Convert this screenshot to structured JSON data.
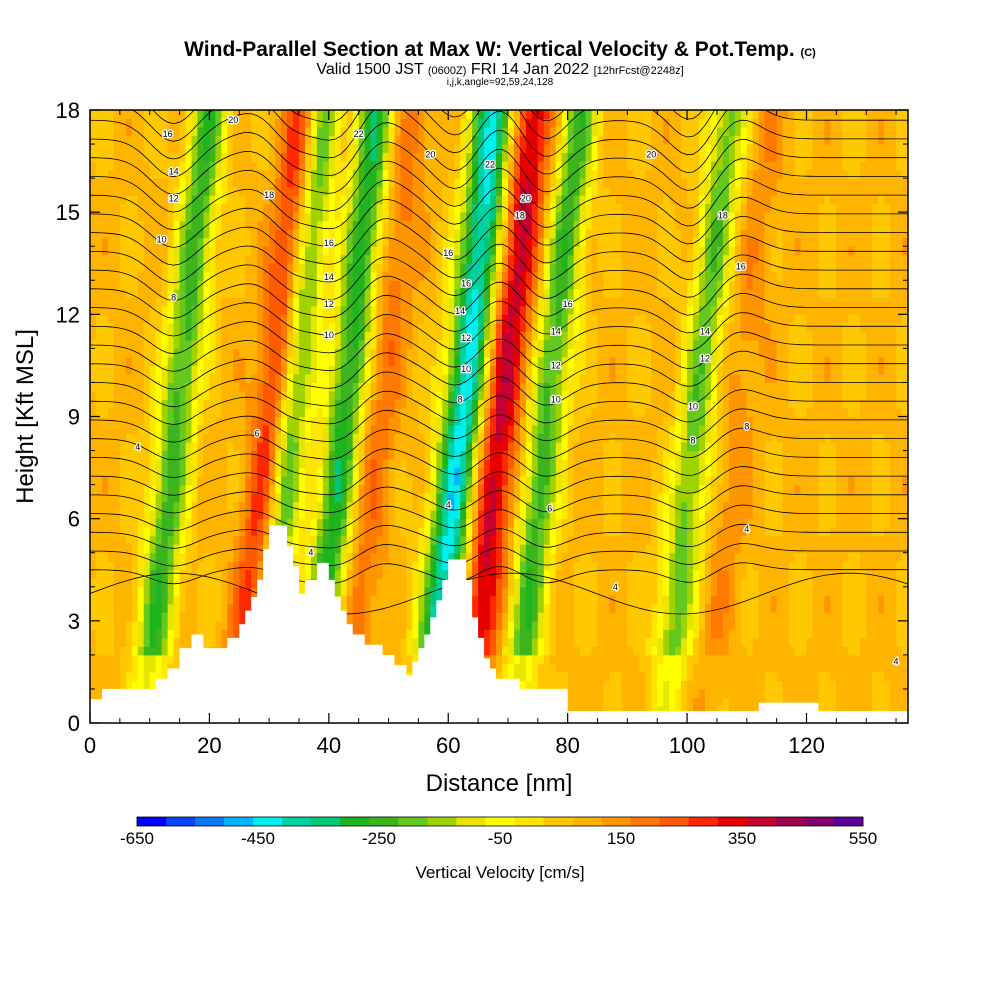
{
  "title": {
    "main": "Wind-Parallel Section at Max W: Vertical Velocity & Pot.Temp.",
    "copyright": "(C)",
    "valid_prefix": "Valid 1500 JST",
    "utc": "(0600Z)",
    "valid_date": "FRI 14 Jan 2022",
    "forecast": "[12hrFcst@2248z]",
    "indices": "i,j,k,angle=92,59,24,128"
  },
  "chart_data": {
    "type": "heatmap",
    "xlabel": "Distance [nm]",
    "ylabel": "Height [Kft MSL]",
    "xlim": [
      0,
      137
    ],
    "ylim": [
      0,
      18
    ],
    "x_ticks": [
      0,
      20,
      40,
      60,
      80,
      100,
      120
    ],
    "y_ticks": [
      0,
      3,
      6,
      9,
      12,
      15,
      18
    ],
    "colorbar": {
      "label": "Vertical Velocity [cm/s]",
      "tick_labels": [
        "-650",
        "-450",
        "-250",
        "-50",
        "150",
        "350",
        "550"
      ],
      "range": [
        -650,
        550
      ],
      "colors": [
        "#0000ff",
        "#0a46f5",
        "#0a78f5",
        "#00b4ff",
        "#00eeee",
        "#00d2a0",
        "#00c878",
        "#1eb41e",
        "#3cb41e",
        "#64c81e",
        "#a0d200",
        "#e6e600",
        "#ffff00",
        "#ffe600",
        "#ffc800",
        "#ffb400",
        "#ff9600",
        "#ff7800",
        "#ff5a00",
        "#ff2800",
        "#e60000",
        "#c80032",
        "#a00050",
        "#82006e",
        "#5a0096"
      ]
    },
    "vertical_velocity_features": [
      {
        "x": 14,
        "sign": "down",
        "peak": -250
      },
      {
        "x": 30,
        "sign": "up",
        "peak": 350
      },
      {
        "x": 33,
        "sign": "down",
        "peak": -250
      },
      {
        "x": 42,
        "sign": "down",
        "peak": -300
      },
      {
        "x": 48,
        "sign": "up",
        "peak": 200
      },
      {
        "x": 62,
        "sign": "down",
        "peak": -450
      },
      {
        "x": 68,
        "sign": "up",
        "peak": 400
      },
      {
        "x": 76,
        "sign": "down",
        "peak": -250
      },
      {
        "x": 101,
        "sign": "down",
        "peak": -200
      },
      {
        "x": 108,
        "sign": "up",
        "peak": 150
      }
    ],
    "potential_temperature_contours": [
      "4",
      "6",
      "8",
      "10",
      "12",
      "14",
      "16",
      "18",
      "20",
      "22"
    ],
    "terrain": [
      [
        0,
        0.7
      ],
      [
        2,
        0.7
      ],
      [
        2,
        1
      ],
      [
        11,
        1
      ],
      [
        11,
        1.3
      ],
      [
        13,
        1.3
      ],
      [
        13,
        1.6
      ],
      [
        15,
        1.6
      ],
      [
        15,
        2.2
      ],
      [
        17,
        2.2
      ],
      [
        17,
        2.6
      ],
      [
        19,
        2.6
      ],
      [
        19,
        2.2
      ],
      [
        23,
        2.2
      ],
      [
        23,
        2.5
      ],
      [
        25,
        2.5
      ],
      [
        25,
        2.9
      ],
      [
        26,
        2.9
      ],
      [
        26,
        3.3
      ],
      [
        27,
        3.3
      ],
      [
        27,
        3.7
      ],
      [
        28,
        3.7
      ],
      [
        28,
        4.2
      ],
      [
        29,
        4.2
      ],
      [
        29,
        5.1
      ],
      [
        30,
        5.1
      ],
      [
        30,
        5.8
      ],
      [
        33,
        5.8
      ],
      [
        33,
        5.2
      ],
      [
        34,
        5.2
      ],
      [
        34,
        4.6
      ],
      [
        35,
        4.6
      ],
      [
        35,
        3.8
      ],
      [
        36,
        3.8
      ],
      [
        36,
        4.2
      ],
      [
        38,
        4.2
      ],
      [
        38,
        4.7
      ],
      [
        40,
        4.7
      ],
      [
        40,
        4.2
      ],
      [
        41,
        4.2
      ],
      [
        41,
        3.7
      ],
      [
        42,
        3.7
      ],
      [
        42,
        3.3
      ],
      [
        43,
        3.3
      ],
      [
        43,
        2.9
      ],
      [
        44,
        2.9
      ],
      [
        44,
        2.6
      ],
      [
        46,
        2.6
      ],
      [
        46,
        2.3
      ],
      [
        49,
        2.3
      ],
      [
        49,
        2.0
      ],
      [
        51,
        2.0
      ],
      [
        51,
        1.7
      ],
      [
        53,
        1.7
      ],
      [
        53,
        1.4
      ],
      [
        54,
        1.4
      ],
      [
        54,
        1.8
      ],
      [
        55,
        1.8
      ],
      [
        55,
        2.2
      ],
      [
        56,
        2.2
      ],
      [
        56,
        2.6
      ],
      [
        57,
        2.6
      ],
      [
        57,
        3.1
      ],
      [
        58,
        3.1
      ],
      [
        58,
        3.6
      ],
      [
        59,
        3.6
      ],
      [
        59,
        4.2
      ],
      [
        60,
        4.2
      ],
      [
        60,
        4.8
      ],
      [
        63,
        4.8
      ],
      [
        63,
        4.2
      ],
      [
        64,
        4.2
      ],
      [
        64,
        3.1
      ],
      [
        65,
        3.1
      ],
      [
        65,
        2.5
      ],
      [
        66,
        2.5
      ],
      [
        66,
        1.9
      ],
      [
        67,
        1.9
      ],
      [
        67,
        1.6
      ],
      [
        68,
        1.6
      ],
      [
        68,
        1.3
      ],
      [
        72,
        1.3
      ],
      [
        72,
        1.0
      ],
      [
        80,
        1.0
      ],
      [
        80,
        0.35
      ],
      [
        112,
        0.35
      ],
      [
        112,
        0.6
      ],
      [
        122,
        0.6
      ],
      [
        122,
        0.35
      ],
      [
        137,
        0.35
      ],
      [
        137,
        0
      ]
    ]
  }
}
